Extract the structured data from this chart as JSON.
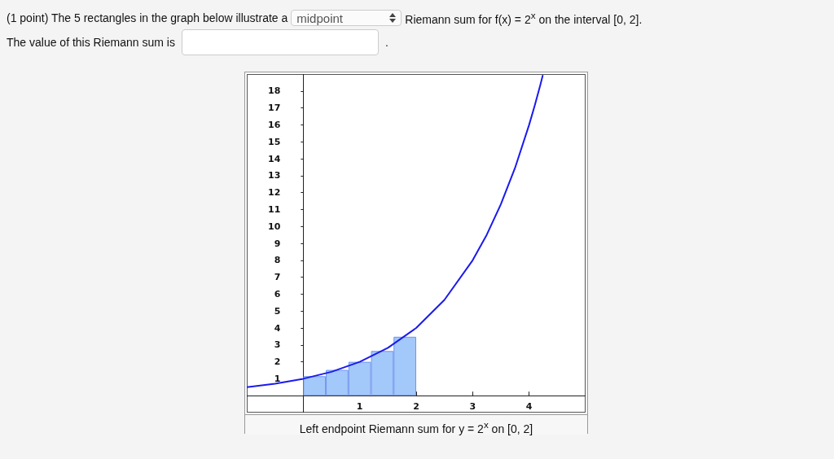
{
  "chart_data": {
    "type": "bar",
    "title": "(1 point) The 5 rectangles in the graph below illustrate a",
    "xlabel": "Left endpoint Riemann sum for y = 2$^{x}$ on [0, 2]",
    "annotations": [
      "midpoint",
      "Riemann sum for f(x) = 2$^{x}$ on the interval [0, 2].",
      "The value of this Riemann sum is",
      "."
    ],
    "series": [
      {
        "color": "#a3c8fa",
        "x": [
          0.2,
          0.6,
          1.0,
          1.4,
          1.8
        ],
        "values": [
          1.15,
          1.52,
          2.0,
          2.64,
          3.48
        ]
      },
      {
        "type": "line",
        "color": "#1a1aee",
        "x": [
          -1,
          -0.5,
          0,
          0.5,
          1,
          1.5,
          2,
          2.5,
          3,
          3.25,
          3.5,
          3.75,
          4,
          4.1,
          4.2,
          4.24
        ],
        "values": [
          0.5,
          0.71,
          1,
          1.41,
          2,
          2.83,
          4,
          5.66,
          8,
          9.51,
          11.31,
          13.45,
          16,
          17.15,
          18.38,
          18.9
        ]
      }
    ],
    "xlim": [
      -1,
      5
    ],
    "xticks": [
      1,
      2,
      3,
      4
    ],
    "ylim": [
      -1,
      19
    ],
    "yticks": [
      1,
      2,
      3,
      4,
      5,
      6,
      7,
      8,
      9,
      10,
      11,
      12,
      13,
      14,
      15,
      16,
      17,
      18
    ],
    "grid": false,
    "marker": "none",
    "line_style": "solid"
  }
}
